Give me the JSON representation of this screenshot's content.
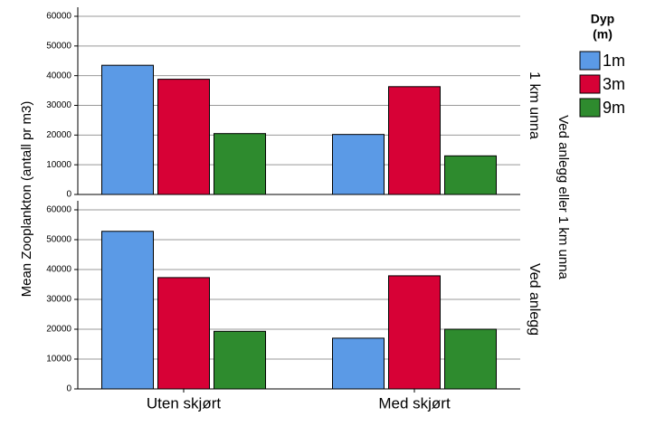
{
  "chart_data": {
    "type": "bar",
    "ylabel": "Mean Zooplankton (antall pr m3)",
    "legend_title": [
      "Dyp",
      "(m)"
    ],
    "facet_title": "Ved anlegg eller 1 km unna",
    "categories": [
      "Uten skjørt",
      "Med skjørt"
    ],
    "series": [
      {
        "name": "1m",
        "color": "#5b9ae6"
      },
      {
        "name": "3m",
        "color": "#d70136"
      },
      {
        "name": "9m",
        "color": "#2e8b2e"
      }
    ],
    "ylim": [
      0,
      60000
    ],
    "yticks": [
      0,
      10000,
      20000,
      30000,
      40000,
      50000,
      60000
    ],
    "grid": true,
    "panels": [
      {
        "label": "1 km unna",
        "series": [
          {
            "values": [
              43500,
              20200
            ]
          },
          {
            "values": [
              38800,
              36300
            ]
          },
          {
            "values": [
              20500,
              13000
            ]
          }
        ]
      },
      {
        "label": "Ved anlegg",
        "series": [
          {
            "values": [
              52800,
              17000
            ]
          },
          {
            "values": [
              37300,
              37900
            ]
          },
          {
            "values": [
              19300,
              20000
            ]
          }
        ]
      }
    ]
  }
}
